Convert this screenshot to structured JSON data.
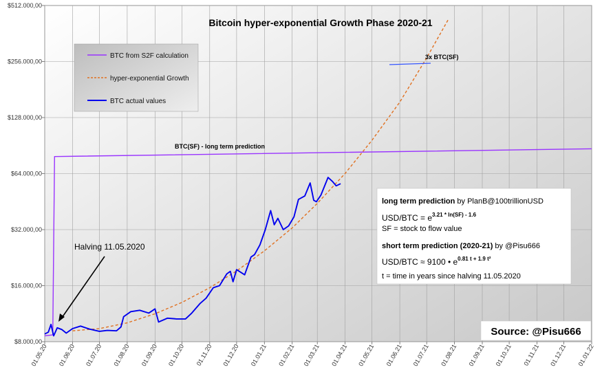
{
  "chart_data": {
    "type": "line",
    "title": "Bitcoin hyper-exponential Growth Phase 2020-21",
    "y_scale": "log2",
    "ylim": [
      8000,
      512000
    ],
    "y_ticks": [
      {
        "value": 8000,
        "label": "$8.000,00"
      },
      {
        "value": 16000,
        "label": "$16.000,00"
      },
      {
        "value": 32000,
        "label": "$32.000,00"
      },
      {
        "value": 64000,
        "label": "$64.000,00"
      },
      {
        "value": 128000,
        "label": "$128.000,00"
      },
      {
        "value": 256000,
        "label": "$256.000,00"
      },
      {
        "value": 512000,
        "label": "$512.000,00"
      }
    ],
    "xlim": [
      "2020-05-01",
      "2022-01-01"
    ],
    "x_ticks": [
      {
        "value": "2020-05-01",
        "label": "01.05.20"
      },
      {
        "value": "2020-06-01",
        "label": "01.06.20"
      },
      {
        "value": "2020-07-01",
        "label": "01.07.20"
      },
      {
        "value": "2020-08-01",
        "label": "01.08.20"
      },
      {
        "value": "2020-09-01",
        "label": "01.09.20"
      },
      {
        "value": "2020-10-01",
        "label": "01.10.20"
      },
      {
        "value": "2020-11-01",
        "label": "01.11.20"
      },
      {
        "value": "2020-12-01",
        "label": "01.12.20"
      },
      {
        "value": "2021-01-01",
        "label": "01.01.21"
      },
      {
        "value": "2021-02-01",
        "label": "01.02.21"
      },
      {
        "value": "2021-03-01",
        "label": "01.03.21"
      },
      {
        "value": "2021-04-01",
        "label": "01.04.21"
      },
      {
        "value": "2021-05-01",
        "label": "01.05.21"
      },
      {
        "value": "2021-06-01",
        "label": "01.06.21"
      },
      {
        "value": "2021-07-01",
        "label": "01.07.21"
      },
      {
        "value": "2021-08-01",
        "label": "01.08.21"
      },
      {
        "value": "2021-09-01",
        "label": "01.09.21"
      },
      {
        "value": "2021-10-01",
        "label": "01.10.21"
      },
      {
        "value": "2021-11-01",
        "label": "01.11.21"
      },
      {
        "value": "2021-12-01",
        "label": "01.12.21"
      },
      {
        "value": "2022-01-01",
        "label": "01.01.22"
      }
    ],
    "grid": true,
    "legend_position": "top-left",
    "series": [
      {
        "name": "BTC from S2F calculation",
        "color": "#9933ff",
        "style": "solid",
        "points": [
          [
            "2020-05-01",
            8600
          ],
          [
            "2020-05-10",
            8700
          ],
          [
            "2020-05-12",
            79000
          ],
          [
            "2022-01-01",
            87000
          ]
        ]
      },
      {
        "name": "hyper-exponential Growth",
        "color": "#e07020",
        "style": "dashed",
        "points": [
          [
            "2020-06-01",
            9150
          ],
          [
            "2020-07-01",
            9400
          ],
          [
            "2020-08-01",
            10100
          ],
          [
            "2020-09-01",
            11300
          ],
          [
            "2020-10-01",
            13000
          ],
          [
            "2020-11-01",
            15600
          ],
          [
            "2020-12-01",
            19200
          ],
          [
            "2021-01-01",
            24600
          ],
          [
            "2021-02-01",
            32700
          ],
          [
            "2021-03-01",
            44300
          ],
          [
            "2021-04-01",
            64100
          ],
          [
            "2021-05-01",
            96700
          ],
          [
            "2021-06-01",
            155000
          ],
          [
            "2021-07-01",
            268000
          ],
          [
            "2021-07-25",
            430000
          ]
        ]
      },
      {
        "name": "BTC actual values",
        "color": "#0000ee",
        "style": "solid",
        "points": [
          [
            "2020-05-01",
            8800
          ],
          [
            "2020-05-05",
            9000
          ],
          [
            "2020-05-08",
            9900
          ],
          [
            "2020-05-11",
            8600
          ],
          [
            "2020-05-15",
            9500
          ],
          [
            "2020-05-20",
            9300
          ],
          [
            "2020-05-25",
            8900
          ],
          [
            "2020-06-01",
            9400
          ],
          [
            "2020-06-10",
            9700
          ],
          [
            "2020-06-20",
            9350
          ],
          [
            "2020-07-01",
            9100
          ],
          [
            "2020-07-10",
            9200
          ],
          [
            "2020-07-20",
            9150
          ],
          [
            "2020-07-25",
            9600
          ],
          [
            "2020-07-28",
            10900
          ],
          [
            "2020-08-05",
            11600
          ],
          [
            "2020-08-15",
            11800
          ],
          [
            "2020-08-25",
            11400
          ],
          [
            "2020-09-01",
            12000
          ],
          [
            "2020-09-05",
            10200
          ],
          [
            "2020-09-15",
            10700
          ],
          [
            "2020-09-25",
            10600
          ],
          [
            "2020-10-05",
            10600
          ],
          [
            "2020-10-12",
            11400
          ],
          [
            "2020-10-21",
            12800
          ],
          [
            "2020-10-28",
            13700
          ],
          [
            "2020-11-05",
            15600
          ],
          [
            "2020-11-12",
            16000
          ],
          [
            "2020-11-20",
            18500
          ],
          [
            "2020-11-24",
            19100
          ],
          [
            "2020-11-27",
            16800
          ],
          [
            "2020-12-01",
            19500
          ],
          [
            "2020-12-10",
            18300
          ],
          [
            "2020-12-17",
            22800
          ],
          [
            "2020-12-21",
            23500
          ],
          [
            "2020-12-27",
            26500
          ],
          [
            "2021-01-02",
            32000
          ],
          [
            "2021-01-08",
            40500
          ],
          [
            "2021-01-12",
            34000
          ],
          [
            "2021-01-16",
            36800
          ],
          [
            "2021-01-22",
            32000
          ],
          [
            "2021-01-28",
            33500
          ],
          [
            "2021-02-03",
            37500
          ],
          [
            "2021-02-08",
            46500
          ],
          [
            "2021-02-15",
            48500
          ],
          [
            "2021-02-21",
            57000
          ],
          [
            "2021-02-25",
            46000
          ],
          [
            "2021-02-28",
            45200
          ],
          [
            "2021-03-05",
            49000
          ],
          [
            "2021-03-13",
            61000
          ],
          [
            "2021-03-18",
            58000
          ],
          [
            "2021-03-22",
            55000
          ],
          [
            "2021-03-27",
            56500
          ]
        ]
      }
    ],
    "annotations": [
      {
        "text": "BTC(SF)  -  long term prediction"
      },
      {
        "text": "3x BTC(SF)"
      },
      {
        "text": "Halving 11.05.2020"
      }
    ]
  },
  "legend": [
    {
      "label": "BTC from S2F calculation",
      "color": "#9933ff",
      "style": "solid"
    },
    {
      "label": "hyper-exponential Growth",
      "color": "#e07020",
      "style": "dashed"
    },
    {
      "label": "BTC actual values",
      "color": "#0000ee",
      "style": "solid"
    }
  ],
  "info_box": {
    "long_title": "long term prediction",
    "long_by": " by PlanB@100trillionUSD",
    "long_formula_base": "USD/BTC = e",
    "long_formula_exp": "3.21 * ln(SF) - 1.6",
    "sf_def": "SF = stock to flow value",
    "short_title": "short term prediction (2020-21)",
    "short_by": " by @Pisu666",
    "short_formula_base": "USD/BTC ≈ 9100 • e",
    "short_formula_exp": "0.81 t + 1.9 t²",
    "t_def": "t = time in years since halving 11.05.2020"
  },
  "source": "Source: @Pisu666"
}
